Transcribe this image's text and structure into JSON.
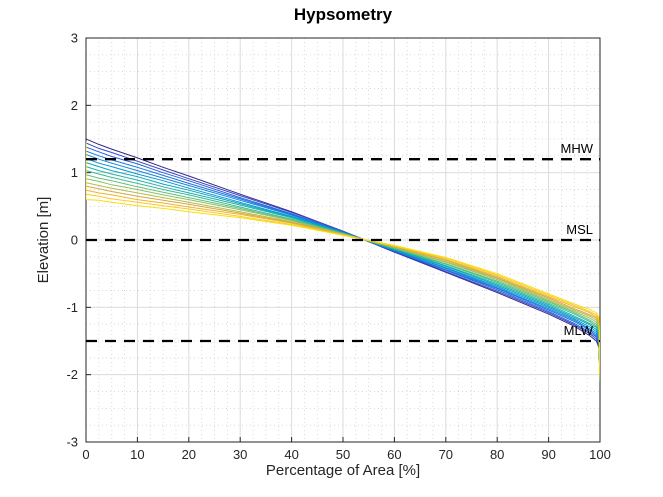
{
  "chart_data": {
    "type": "line",
    "title": "Hypsometry",
    "xlabel": "Percentage of Area [%]",
    "ylabel": "Elevation [m]",
    "xlim": [
      0,
      100
    ],
    "ylim": [
      -3,
      3
    ],
    "xticks": [
      0,
      10,
      20,
      30,
      40,
      50,
      60,
      70,
      80,
      90,
      100
    ],
    "yticks": [
      -3,
      -2,
      -1,
      0,
      1,
      2,
      3
    ],
    "grid": {
      "major": true,
      "minor": true,
      "x_minor_step": 2.5,
      "y_minor_step": 0.25
    },
    "legend": "none",
    "reference_lines": [
      {
        "label": "MHW",
        "y": 1.2
      },
      {
        "label": "MSL",
        "y": 0
      },
      {
        "label": "MLW",
        "y": -1.5
      }
    ],
    "x": [
      0,
      2.5,
      5,
      10,
      15,
      20,
      30,
      40,
      50,
      60,
      70,
      80,
      90,
      95,
      98,
      99.3,
      99.8,
      100
    ],
    "series": [
      {
        "name": "curve-01",
        "color": "#352a87",
        "y": [
          1.5,
          1.42,
          1.35,
          1.22,
          1.08,
          0.95,
          0.68,
          0.42,
          0.13,
          -0.18,
          -0.48,
          -0.78,
          -1.1,
          -1.28,
          -1.42,
          -1.5,
          -1.6,
          -2.1
        ]
      },
      {
        "name": "curve-02",
        "color": "#3846c8",
        "y": [
          1.44,
          1.36,
          1.3,
          1.17,
          1.04,
          0.91,
          0.66,
          0.41,
          0.13,
          -0.17,
          -0.47,
          -0.76,
          -1.08,
          -1.26,
          -1.39,
          -1.47,
          -1.57,
          -2.1
        ]
      },
      {
        "name": "curve-03",
        "color": "#2e5fda",
        "y": [
          1.38,
          1.31,
          1.24,
          1.13,
          1.0,
          0.88,
          0.63,
          0.39,
          0.12,
          -0.17,
          -0.45,
          -0.74,
          -1.06,
          -1.24,
          -1.37,
          -1.44,
          -1.54,
          -2.09
        ]
      },
      {
        "name": "curve-04",
        "color": "#1d74e0",
        "y": [
          1.32,
          1.25,
          1.19,
          1.08,
          0.96,
          0.84,
          0.61,
          0.38,
          0.12,
          -0.16,
          -0.44,
          -0.72,
          -1.04,
          -1.21,
          -1.34,
          -1.42,
          -1.51,
          -2.09
        ]
      },
      {
        "name": "curve-05",
        "color": "#0e86dc",
        "y": [
          1.27,
          1.2,
          1.14,
          1.03,
          0.92,
          0.81,
          0.59,
          0.37,
          0.11,
          -0.15,
          -0.42,
          -0.71,
          -1.02,
          -1.19,
          -1.32,
          -1.39,
          -1.48,
          -2.09
        ]
      },
      {
        "name": "curve-06",
        "color": "#0696d0",
        "y": [
          1.21,
          1.14,
          1.09,
          0.98,
          0.88,
          0.77,
          0.56,
          0.35,
          0.11,
          -0.15,
          -0.41,
          -0.69,
          -1.0,
          -1.17,
          -1.29,
          -1.36,
          -1.45,
          -2.08
        ]
      },
      {
        "name": "curve-07",
        "color": "#09a5c0",
        "y": [
          1.15,
          1.09,
          1.03,
          0.94,
          0.83,
          0.74,
          0.54,
          0.34,
          0.11,
          -0.14,
          -0.39,
          -0.67,
          -0.98,
          -1.15,
          -1.26,
          -1.33,
          -1.42,
          -2.08
        ]
      },
      {
        "name": "curve-08",
        "color": "#1fb1ac",
        "y": [
          1.09,
          1.03,
          0.98,
          0.89,
          0.79,
          0.7,
          0.52,
          0.33,
          0.1,
          -0.13,
          -0.38,
          -0.65,
          -0.96,
          -1.13,
          -1.24,
          -1.3,
          -1.39,
          -2.08
        ]
      },
      {
        "name": "curve-09",
        "color": "#3dbb93",
        "y": [
          1.03,
          0.98,
          0.93,
          0.84,
          0.75,
          0.67,
          0.49,
          0.31,
          0.1,
          -0.13,
          -0.36,
          -0.63,
          -0.94,
          -1.1,
          -1.21,
          -1.28,
          -1.36,
          -2.07
        ]
      },
      {
        "name": "curve-10",
        "color": "#64bf7a",
        "y": [
          0.97,
          0.92,
          0.88,
          0.79,
          0.71,
          0.63,
          0.47,
          0.3,
          0.09,
          -0.12,
          -0.35,
          -0.61,
          -0.92,
          -1.08,
          -1.19,
          -1.25,
          -1.33,
          -2.07
        ]
      },
      {
        "name": "curve-11",
        "color": "#8cc061",
        "y": [
          0.91,
          0.87,
          0.82,
          0.75,
          0.67,
          0.6,
          0.45,
          0.29,
          0.09,
          -0.11,
          -0.33,
          -0.59,
          -0.9,
          -1.06,
          -1.16,
          -1.22,
          -1.3,
          -2.07
        ]
      },
      {
        "name": "curve-12",
        "color": "#b2bd4f",
        "y": [
          0.85,
          0.81,
          0.77,
          0.7,
          0.63,
          0.56,
          0.42,
          0.27,
          0.09,
          -0.11,
          -0.32,
          -0.57,
          -0.88,
          -1.04,
          -1.13,
          -1.19,
          -1.27,
          -2.06
        ]
      },
      {
        "name": "curve-13",
        "color": "#d6a73b",
        "y": [
          0.8,
          0.76,
          0.72,
          0.65,
          0.59,
          0.53,
          0.4,
          0.26,
          0.08,
          -0.1,
          -0.3,
          -0.56,
          -0.86,
          -1.02,
          -1.11,
          -1.16,
          -1.24,
          -2.06
        ]
      },
      {
        "name": "curve-14",
        "color": "#eeb42c",
        "y": [
          0.74,
          0.7,
          0.67,
          0.6,
          0.55,
          0.49,
          0.38,
          0.25,
          0.08,
          -0.09,
          -0.29,
          -0.54,
          -0.84,
          -0.99,
          -1.08,
          -1.14,
          -1.21,
          -2.06
        ]
      },
      {
        "name": "curve-15",
        "color": "#fcc91e",
        "y": [
          0.68,
          0.65,
          0.61,
          0.56,
          0.51,
          0.46,
          0.35,
          0.23,
          0.07,
          -0.09,
          -0.27,
          -0.52,
          -0.82,
          -0.97,
          -1.06,
          -1.11,
          -1.18,
          -2.05
        ]
      },
      {
        "name": "curve-16",
        "color": "#f7e00d",
        "pre": [
          [
            0,
            1.46
          ]
        ],
        "y": [
          0.6,
          0.59,
          0.56,
          0.51,
          0.47,
          0.42,
          0.33,
          0.22,
          0.07,
          -0.08,
          -0.26,
          -0.5,
          -0.8,
          -0.95,
          -1.03,
          -1.08,
          -1.15,
          -2.05
        ]
      }
    ]
  },
  "style": {
    "background": "#ffffff",
    "axis_color": "#262626",
    "tick_label_color": "#262626",
    "grid_color": "#dbdbdb",
    "minor_grid_color": "#cfcfcf",
    "reference_line_color": "#000000",
    "reference_label_color": "#000000",
    "curve_line_width": 1,
    "reference_line_width": 2.3
  }
}
